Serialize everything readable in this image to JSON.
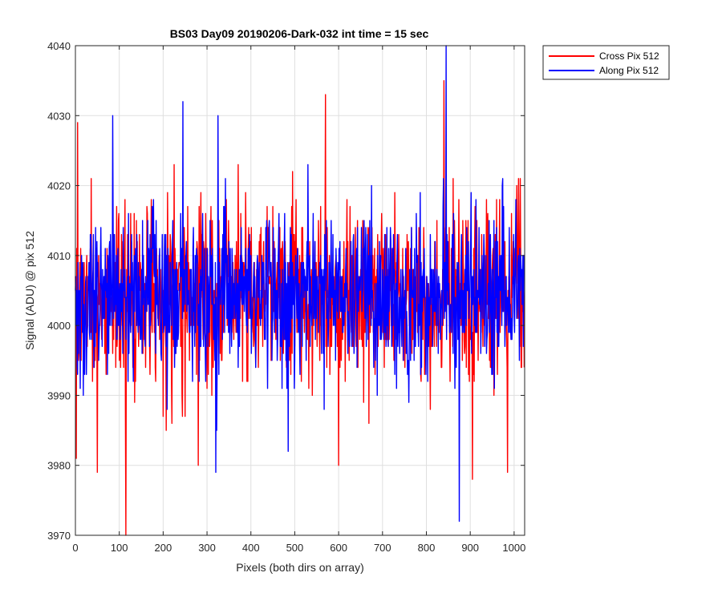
{
  "colors": {
    "cross": "#ff0000",
    "along": "#0000ff",
    "grid": "#dfdfdf",
    "axis": "#262626",
    "background": "#ffffff"
  },
  "chart_data": {
    "type": "line",
    "title": "BS03 Day09 20190206-Dark-032 int time = 15 sec",
    "xlabel": "Pixels (both dirs on array)",
    "ylabel": "Signal (ADU) @ pix 512",
    "xlim": [
      0,
      1024
    ],
    "ylim": [
      3970,
      4040
    ],
    "xticks": [
      0,
      100,
      200,
      300,
      400,
      500,
      600,
      700,
      800,
      900,
      1000
    ],
    "yticks": [
      3970,
      3980,
      3990,
      4000,
      4010,
      4020,
      4030,
      4040
    ],
    "grid": true,
    "legend_position": "outside-top-right",
    "series": [
      {
        "name": "Cross Pix 512",
        "color": "#ff0000",
        "n_points": 1024,
        "mean": 4004.5,
        "min": 3970,
        "max": 4035,
        "notable_points": [
          {
            "x": 2,
            "y": 3981
          },
          {
            "x": 5,
            "y": 4029
          },
          {
            "x": 50,
            "y": 3979
          },
          {
            "x": 115,
            "y": 3970
          },
          {
            "x": 280,
            "y": 3980
          },
          {
            "x": 570,
            "y": 4033
          },
          {
            "x": 600,
            "y": 3980
          },
          {
            "x": 840,
            "y": 4035
          },
          {
            "x": 905,
            "y": 3978
          },
          {
            "x": 985,
            "y": 3979
          }
        ]
      },
      {
        "name": "Along Pix 512",
        "color": "#0000ff",
        "n_points": 1024,
        "mean": 4004.5,
        "min": 3972,
        "max": 4040,
        "notable_points": [
          {
            "x": 85,
            "y": 4030
          },
          {
            "x": 245,
            "y": 4032
          },
          {
            "x": 320,
            "y": 3979
          },
          {
            "x": 325,
            "y": 4030
          },
          {
            "x": 485,
            "y": 3982
          },
          {
            "x": 845,
            "y": 4040
          },
          {
            "x": 875,
            "y": 3972
          }
        ]
      }
    ]
  }
}
